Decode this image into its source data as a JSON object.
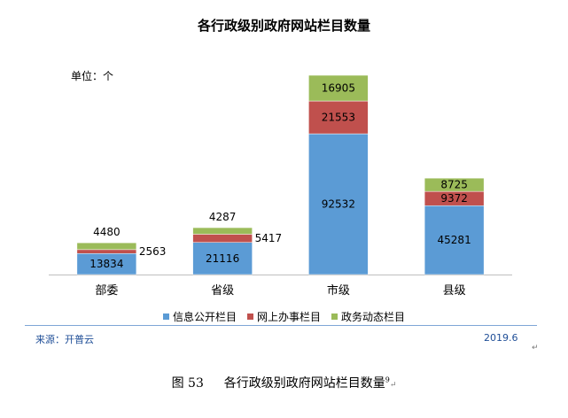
{
  "chart_data": {
    "type": "bar",
    "stacked": true,
    "title": "各行政级别政府网站栏目数量",
    "unit_label": "单位：个",
    "categories": [
      "部委",
      "省级",
      "市级",
      "县级"
    ],
    "series": [
      {
        "name": "信息公开栏目",
        "color": "#5b9bd5",
        "values": [
          13834,
          21116,
          92532,
          45281
        ]
      },
      {
        "name": "网上办事栏目",
        "color": "#c0504d",
        "values": [
          2563,
          5417,
          21553,
          9372
        ]
      },
      {
        "name": "政务动态栏目",
        "color": "#9bbb59",
        "values": [
          4480,
          4287,
          16905,
          8725
        ]
      }
    ],
    "xlabel": "",
    "ylabel": "",
    "legend": "bottom",
    "grid": false
  },
  "footer": {
    "source": "来源：开普云",
    "date": "2019.6"
  },
  "caption": {
    "figure_label": "图  53",
    "text": "各行政级别政府网站栏目数量",
    "footnote_ref": "9"
  },
  "para_mark": "↵",
  "icons": {
    "legend_swatch": "square-swatch-icon",
    "paragraph_mark": "return-arrow-icon"
  }
}
